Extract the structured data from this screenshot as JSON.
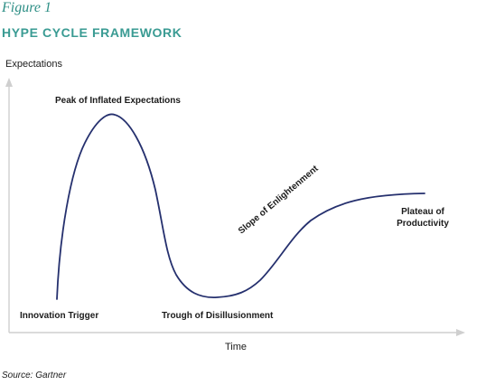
{
  "figure": {
    "label": "Figure 1",
    "title": "HYPE CYCLE FRAMEWORK"
  },
  "axes": {
    "y_label": "Expectations",
    "x_label": "Time"
  },
  "phases": {
    "peak": "Peak of Inflated Expectations",
    "trigger": "Innovation Trigger",
    "trough": "Trough of Disillusionment",
    "slope": "Slope of Enlightenment",
    "plateau": "Plateau of Productivity"
  },
  "source": "Source: Gartner",
  "colors": {
    "accent": "#3a9b93",
    "curve": "#25306e",
    "axis": "#cfcfcf"
  }
}
